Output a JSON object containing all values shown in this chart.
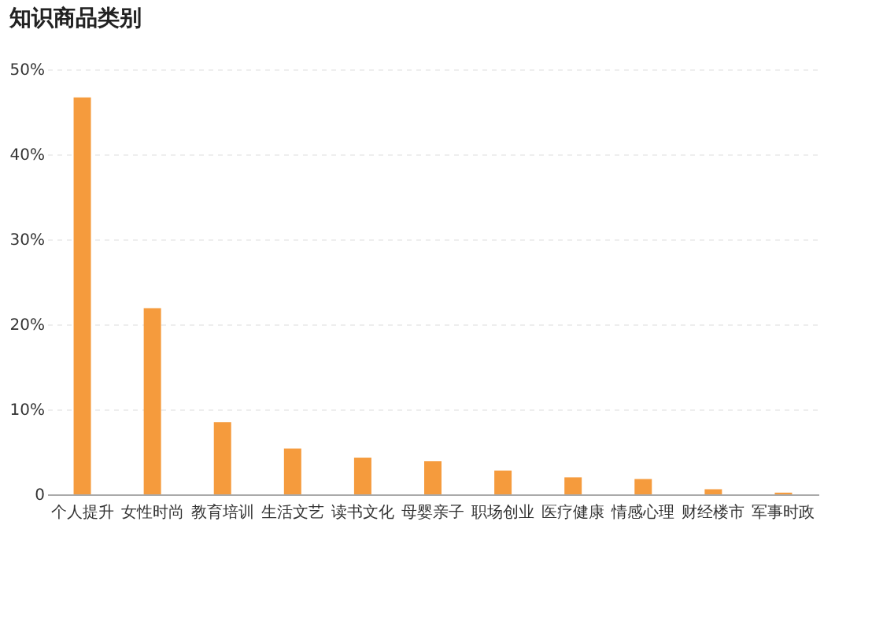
{
  "chart_data": {
    "type": "bar",
    "title": "知识商品类别",
    "categories": [
      "个人提升",
      "女性时尚",
      "教育培训",
      "生活文艺",
      "读书文化",
      "母婴亲子",
      "职场创业",
      "医疗健康",
      "情感心理",
      "财经楼市",
      "军事时政"
    ],
    "values": [
      46.7,
      21.9,
      8.5,
      5.4,
      4.3,
      3.9,
      2.8,
      2.0,
      1.8,
      0.6,
      0.2
    ],
    "color": "#f59b3d",
    "ylim": [
      0,
      50
    ],
    "yticks": [
      {
        "value": 0,
        "label": "0"
      },
      {
        "value": 10,
        "label": "10%"
      },
      {
        "value": 20,
        "label": "20%"
      },
      {
        "value": 30,
        "label": "30%"
      },
      {
        "value": 40,
        "label": "40%"
      },
      {
        "value": 50,
        "label": "50%"
      }
    ],
    "grid": "y"
  }
}
